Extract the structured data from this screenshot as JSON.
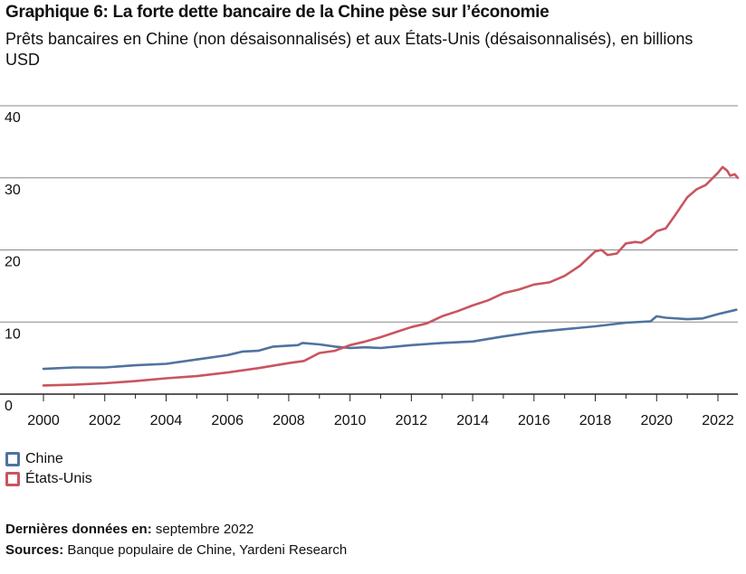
{
  "chart_data": {
    "type": "line",
    "title": "Graphique 6: La forte dette bancaire de la Chine pèse sur l’économie",
    "subtitle": "Prêts bancaires en Chine (non désaisonnalisés) et aux États-Unis (désaisonnalisés), en billions USD",
    "xlim": [
      1999.6,
      2022.9
    ],
    "ylim": [
      0,
      40
    ],
    "yticks": [
      0,
      10,
      20,
      30,
      40
    ],
    "xticks": [
      "2000",
      "2002",
      "2004",
      "2006",
      "2008",
      "2010",
      "2012",
      "2014",
      "2016",
      "2018",
      "2020",
      "2022"
    ],
    "grid": "horizontal",
    "legend_position": "bottom-left",
    "series": [
      {
        "name": "Chine",
        "color": "#4f73a0",
        "points": [
          [
            2000,
            3.5
          ],
          [
            2001,
            3.7
          ],
          [
            2002,
            3.7
          ],
          [
            2003,
            4.0
          ],
          [
            2004,
            4.2
          ],
          [
            2005,
            4.8
          ],
          [
            2006,
            5.4
          ],
          [
            2006.5,
            5.9
          ],
          [
            2007,
            6.0
          ],
          [
            2007.5,
            6.6
          ],
          [
            2008.3,
            6.8
          ],
          [
            2008.45,
            7.1
          ],
          [
            2009,
            6.9
          ],
          [
            2009.5,
            6.6
          ],
          [
            2010,
            6.4
          ],
          [
            2010.5,
            6.5
          ],
          [
            2011,
            6.4
          ],
          [
            2012,
            6.8
          ],
          [
            2013,
            7.1
          ],
          [
            2014,
            7.3
          ],
          [
            2015,
            8.0
          ],
          [
            2016,
            8.6
          ],
          [
            2017,
            9.0
          ],
          [
            2018,
            9.4
          ],
          [
            2019,
            9.9
          ],
          [
            2019.8,
            10.1
          ],
          [
            2020,
            10.8
          ],
          [
            2020.3,
            10.6
          ],
          [
            2021,
            10.4
          ],
          [
            2021.5,
            10.5
          ],
          [
            2022,
            11.1
          ],
          [
            2022.6,
            11.7
          ]
        ]
      },
      {
        "name": "États-Unis",
        "color": "#c9555f",
        "points": [
          [
            2000,
            1.2
          ],
          [
            2001,
            1.3
          ],
          [
            2002,
            1.5
          ],
          [
            2003,
            1.8
          ],
          [
            2004,
            2.2
          ],
          [
            2005,
            2.5
          ],
          [
            2006,
            3.0
          ],
          [
            2007,
            3.6
          ],
          [
            2008,
            4.3
          ],
          [
            2008.5,
            4.6
          ],
          [
            2009,
            5.7
          ],
          [
            2009.5,
            6.0
          ],
          [
            2010,
            6.8
          ],
          [
            2010.5,
            7.3
          ],
          [
            2011,
            7.9
          ],
          [
            2011.5,
            8.6
          ],
          [
            2012,
            9.3
          ],
          [
            2012.5,
            9.8
          ],
          [
            2013,
            10.8
          ],
          [
            2013.5,
            11.5
          ],
          [
            2014,
            12.3
          ],
          [
            2014.5,
            13.0
          ],
          [
            2015,
            14.0
          ],
          [
            2015.5,
            14.5
          ],
          [
            2016,
            15.2
          ],
          [
            2016.5,
            15.5
          ],
          [
            2017,
            16.4
          ],
          [
            2017.5,
            17.8
          ],
          [
            2018,
            19.8
          ],
          [
            2018.2,
            20.0
          ],
          [
            2018.4,
            19.3
          ],
          [
            2018.7,
            19.5
          ],
          [
            2019,
            20.9
          ],
          [
            2019.3,
            21.1
          ],
          [
            2019.5,
            21.0
          ],
          [
            2019.8,
            21.8
          ],
          [
            2020,
            22.6
          ],
          [
            2020.3,
            23.0
          ],
          [
            2020.6,
            24.8
          ],
          [
            2021,
            27.3
          ],
          [
            2021.3,
            28.4
          ],
          [
            2021.6,
            29.0
          ],
          [
            2022,
            30.7
          ],
          [
            2022.15,
            31.5
          ],
          [
            2022.3,
            31.0
          ],
          [
            2022.4,
            30.3
          ],
          [
            2022.55,
            30.5
          ],
          [
            2022.65,
            30.0
          ]
        ]
      }
    ]
  },
  "footer": {
    "last_data_label": "Dernières données en:",
    "last_data_value": " septembre 2022",
    "sources_label": "Sources:",
    "sources_value": " Banque populaire de Chine, Yardeni Research"
  },
  "colors": {
    "axis": "#222222",
    "grid": "#888888"
  }
}
